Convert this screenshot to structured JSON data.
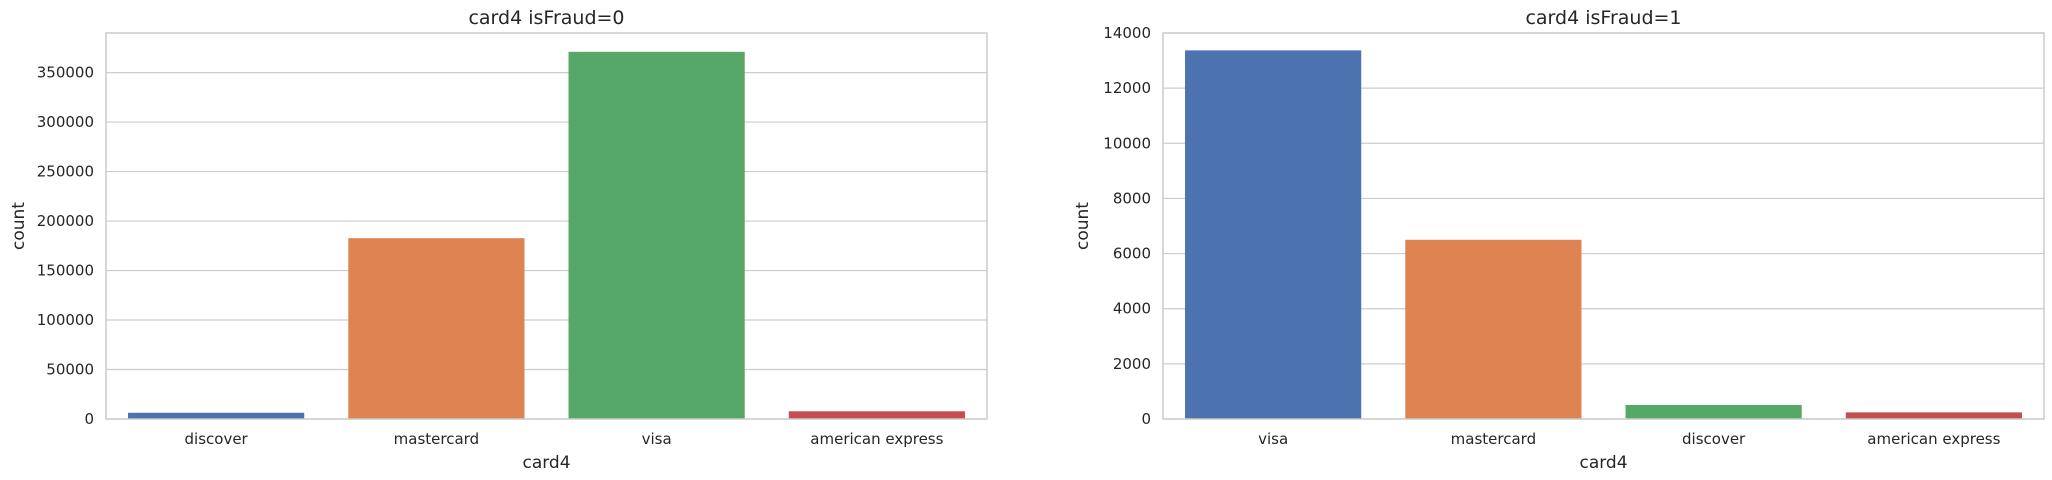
{
  "chart_data": [
    {
      "type": "bar",
      "title": "card4 isFraud=0",
      "xlabel": "card4",
      "ylabel": "count",
      "categories": [
        "discover",
        "mastercard",
        "visa",
        "american express"
      ],
      "values": [
        6300,
        182700,
        371000,
        7800
      ],
      "colors": [
        "#4c72b0",
        "#dd8452",
        "#55a868",
        "#c44e52"
      ],
      "yticks": [
        0,
        50000,
        100000,
        150000,
        200000,
        250000,
        300000,
        350000
      ],
      "ylim": [
        0,
        390000
      ],
      "grid": "y"
    },
    {
      "type": "bar",
      "title": "card4 isFraud=1",
      "xlabel": "card4",
      "ylabel": "count",
      "categories": [
        "visa",
        "mastercard",
        "discover",
        "american express"
      ],
      "values": [
        13370,
        6500,
        510,
        240
      ],
      "colors": [
        "#4c72b0",
        "#dd8452",
        "#55a868",
        "#c44e52"
      ],
      "yticks": [
        0,
        2000,
        4000,
        6000,
        8000,
        10000,
        12000,
        14000
      ],
      "ylim": [
        0,
        14000
      ],
      "grid": "y"
    }
  ]
}
